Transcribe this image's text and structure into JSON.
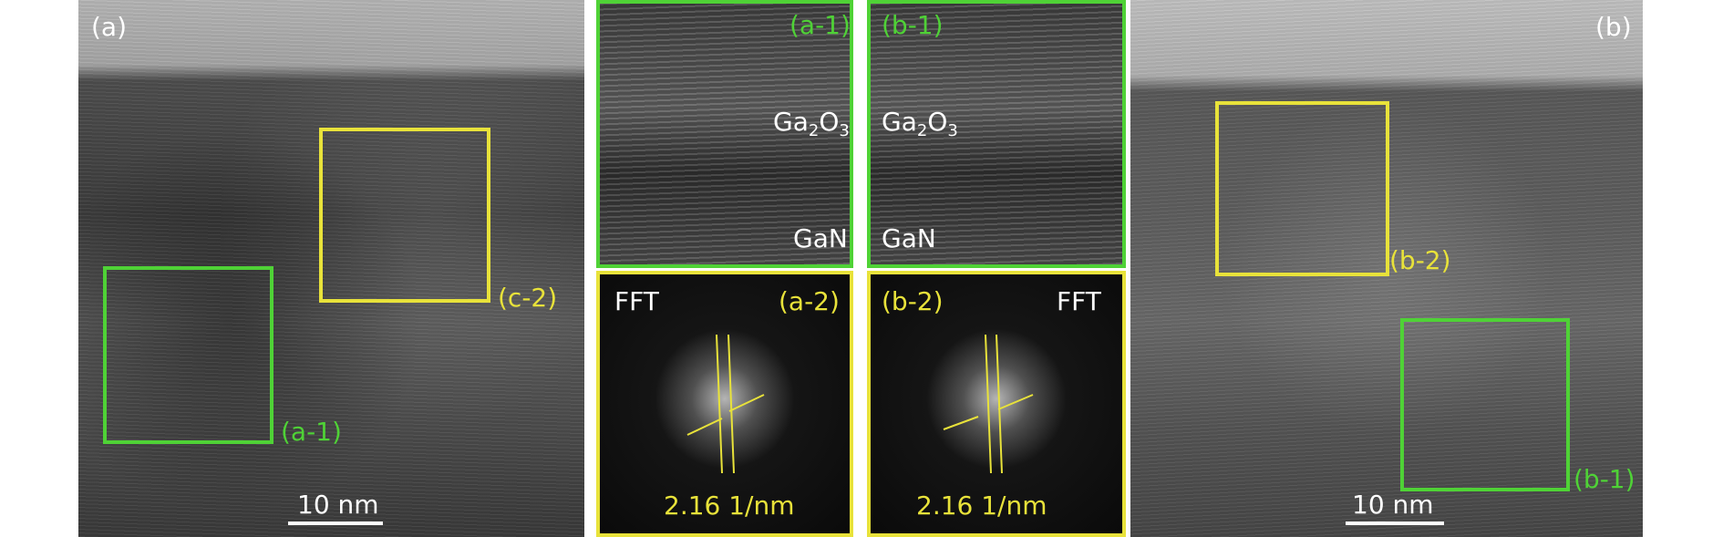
{
  "panel_a": {
    "label": "(a)",
    "region_labels": {
      "a1": "(a-1)",
      "c2": "(c-2)"
    },
    "scale_bar": "10 nm"
  },
  "panel_a1": {
    "label": "(a-1)",
    "top_layer_main": "Ga",
    "top_layer_sub1": "2",
    "top_layer_mid": "O",
    "top_layer_sub2": "3",
    "bottom_layer": "GaN"
  },
  "panel_b1": {
    "label": "(b-1)",
    "top_layer_main": "Ga",
    "top_layer_sub1": "2",
    "top_layer_mid": "O",
    "top_layer_sub2": "3",
    "bottom_layer": "GaN"
  },
  "panel_a2": {
    "label": "(a-2)",
    "title": "FFT",
    "spacing": "2.16 1/nm"
  },
  "panel_b2": {
    "label": "(b-2)",
    "title": "FFT",
    "spacing": "2.16 1/nm"
  },
  "panel_b": {
    "label": "(b)",
    "region_labels": {
      "b2": "(b-2)",
      "b1": "(b-1)"
    },
    "scale_bar": "10 nm"
  },
  "colors": {
    "green": "#4fd236",
    "yellow": "#e8e23a",
    "white": "#ffffff"
  }
}
